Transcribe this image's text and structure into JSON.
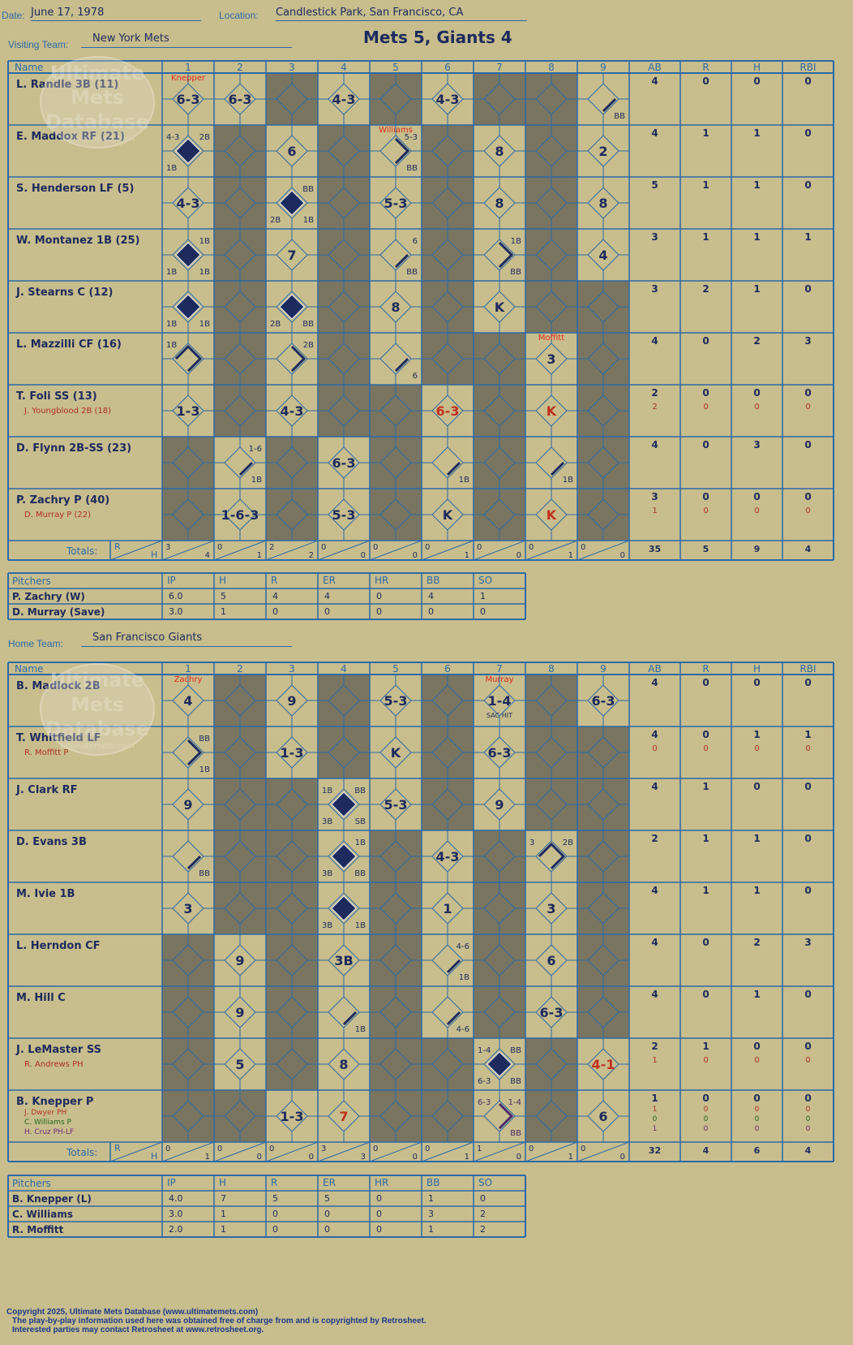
{
  "header": {
    "date_label": "Date:",
    "date": "June 17, 1978",
    "location_label": "Location:",
    "location": "Candlestick Park, San Francisco, CA",
    "title": "Mets 5, Giants 4"
  },
  "labels": {
    "visiting_team": "Visiting Team:",
    "home_team": "Home Team:",
    "name": "Name",
    "innings": [
      "1",
      "2",
      "3",
      "4",
      "5",
      "6",
      "7",
      "8",
      "9"
    ],
    "stats": [
      "AB",
      "R",
      "H",
      "RBI"
    ],
    "totals": "Totals:",
    "r": "R",
    "h": "H",
    "pitchers": "Pitchers",
    "pitch_cols": [
      "IP",
      "H",
      "R",
      "ER",
      "HR",
      "BB",
      "SO"
    ]
  },
  "watermark": [
    "Ultimate",
    "Mets",
    "Database",
    "ultimatemets.com"
  ],
  "visiting": {
    "team": "New York Mets",
    "players": [
      {
        "name": "L. Randle 3B (11)",
        "subs": [],
        "stats": [
          "4",
          "0",
          "0",
          "0"
        ],
        "subs_stats": []
      },
      {
        "name": "E. Maddox RF (21)",
        "subs": [],
        "stats": [
          "4",
          "1",
          "1",
          "0"
        ],
        "subs_stats": []
      },
      {
        "name": "S. Henderson LF (5)",
        "subs": [],
        "stats": [
          "5",
          "1",
          "1",
          "0"
        ],
        "subs_stats": []
      },
      {
        "name": "W. Montanez 1B (25)",
        "subs": [],
        "stats": [
          "3",
          "1",
          "1",
          "1"
        ],
        "subs_stats": []
      },
      {
        "name": "J. Stearns C (12)",
        "subs": [],
        "stats": [
          "3",
          "2",
          "1",
          "0"
        ],
        "subs_stats": []
      },
      {
        "name": "L. Mazzilli CF (16)",
        "subs": [],
        "stats": [
          "4",
          "0",
          "2",
          "3"
        ],
        "subs_stats": []
      },
      {
        "name": "T. Foli SS (13)",
        "subs": [
          {
            "name": "J. Youngblood 2B (18)",
            "color": "#b0301e"
          }
        ],
        "stats": [
          "2",
          "0",
          "0",
          "0"
        ],
        "subs_stats": [
          [
            "2",
            "0",
            "0",
            "0"
          ]
        ]
      },
      {
        "name": "D. Flynn 2B-SS (23)",
        "subs": [],
        "stats": [
          "4",
          "0",
          "3",
          "0"
        ],
        "subs_stats": []
      },
      {
        "name": "P. Zachry P (40)",
        "subs": [
          {
            "name": "D. Murray P (22)",
            "color": "#b0301e"
          }
        ],
        "stats": [
          "3",
          "0",
          "0",
          "0"
        ],
        "subs_stats": [
          [
            "1",
            "0",
            "0",
            "0"
          ]
        ]
      }
    ],
    "cells": [
      [
        {
          "t": "6-3",
          "top": "Knepper"
        },
        {
          "t": "6-3"
        },
        {
          "dark": true
        },
        {
          "t": "4-3"
        },
        {
          "dark": true
        },
        {
          "t": "4-3"
        },
        {
          "dark": true
        },
        {
          "dark": true
        },
        {
          "path": "1",
          "br": "BB"
        }
      ],
      [
        {
          "run": true,
          "tl": "4-3",
          "tr": "2B",
          "bl": "1B"
        },
        {
          "dark": true
        },
        {
          "t": "6"
        },
        {
          "dark": true
        },
        {
          "path": "2",
          "tr": "5-3",
          "br": "BB",
          "top": "Williams"
        },
        {
          "dark": true
        },
        {
          "t": "8"
        },
        {
          "dark": true
        },
        {
          "t": "2"
        }
      ],
      [
        {
          "t": "4-3"
        },
        {
          "dark": true
        },
        {
          "run": true,
          "tr": "BB",
          "bl": "2B",
          "br": "1B"
        },
        {
          "dark": true
        },
        {
          "t": "5-3"
        },
        {
          "dark": true
        },
        {
          "t": "8"
        },
        {
          "dark": true
        },
        {
          "t": "8"
        }
      ],
      [
        {
          "run": true,
          "tr": "1B",
          "bl": "1B",
          "br": "1B"
        },
        {
          "dark": true
        },
        {
          "t": "7"
        },
        {
          "dark": true
        },
        {
          "path": "1",
          "tr": "6",
          "br": "BB"
        },
        {
          "dark": true
        },
        {
          "path": "2",
          "tr": "1B",
          "br": "BB"
        },
        {
          "dark": true
        },
        {
          "t": "4"
        }
      ],
      [
        {
          "run": true,
          "bl": "1B",
          "br": "1B"
        },
        {
          "dark": true
        },
        {
          "run": true,
          "bl": "2B",
          "br": "BB"
        },
        {
          "dark": true
        },
        {
          "t": "8"
        },
        {
          "dark": true
        },
        {
          "t": "K",
          "rev": true
        },
        {
          "dark": true
        },
        {
          "dark": true
        }
      ],
      [
        {
          "path": "3",
          "tl": "1B"
        },
        {
          "dark": true
        },
        {
          "path": "2",
          "tr": "2B"
        },
        {
          "dark": true
        },
        {
          "path": "1",
          "br": "6"
        },
        {
          "dark": true
        },
        {
          "dark": true
        },
        {
          "t": "3",
          "top": "Moffitt"
        },
        {
          "dark": true
        }
      ],
      [
        {
          "t": "1-3"
        },
        {
          "dark": true
        },
        {
          "t": "4-3"
        },
        {
          "dark": true
        },
        {
          "dark": true
        },
        {
          "t": "6-3",
          "red": true
        },
        {
          "dark": true
        },
        {
          "t": "K",
          "red": true
        },
        {
          "dark": true
        }
      ],
      [
        {
          "dark": true
        },
        {
          "path": "1",
          "tr": "1-6",
          "br": "1B"
        },
        {
          "dark": true
        },
        {
          "t": "6-3"
        },
        {
          "dark": true
        },
        {
          "path": "1",
          "br": "1B"
        },
        {
          "dark": true
        },
        {
          "path": "1",
          "br": "1B"
        },
        {
          "dark": true
        }
      ],
      [
        {
          "dark": true
        },
        {
          "t": "1-6-3"
        },
        {
          "dark": true
        },
        {
          "t": "5-3"
        },
        {
          "dark": true
        },
        {
          "t": "K"
        },
        {
          "dark": true
        },
        {
          "t": "K",
          "red": true
        },
        {
          "dark": true
        }
      ]
    ],
    "totals": [
      [
        "3",
        "4"
      ],
      [
        "0",
        "1"
      ],
      [
        "2",
        "2"
      ],
      [
        "0",
        "0"
      ],
      [
        "0",
        "0"
      ],
      [
        "0",
        "1"
      ],
      [
        "0",
        "0"
      ],
      [
        "0",
        "1"
      ],
      [
        "0",
        "0"
      ]
    ],
    "totals_stats": [
      "35",
      "5",
      "9",
      "4"
    ],
    "pitchers": [
      {
        "name": "P. Zachry (W)",
        "stats": [
          "6.0",
          "5",
          "4",
          "4",
          "0",
          "4",
          "1"
        ]
      },
      {
        "name": "D. Murray (Save)",
        "stats": [
          "3.0",
          "1",
          "0",
          "0",
          "0",
          "0",
          "0"
        ]
      }
    ]
  },
  "home": {
    "team": "San Francisco Giants",
    "players": [
      {
        "name": "B. Madlock 2B",
        "subs": [],
        "stats": [
          "4",
          "0",
          "0",
          "0"
        ],
        "subs_stats": []
      },
      {
        "name": "T. Whitfield LF",
        "subs": [
          {
            "name": "R. Moffitt P",
            "color": "#b0301e"
          }
        ],
        "stats": [
          "4",
          "0",
          "1",
          "1"
        ],
        "subs_stats": [
          [
            "0",
            "0",
            "0",
            "0"
          ]
        ]
      },
      {
        "name": "J. Clark RF",
        "subs": [],
        "stats": [
          "4",
          "1",
          "0",
          "0"
        ],
        "subs_stats": []
      },
      {
        "name": "D. Evans 3B",
        "subs": [],
        "stats": [
          "2",
          "1",
          "1",
          "0"
        ],
        "subs_stats": []
      },
      {
        "name": "M. Ivie 1B",
        "subs": [],
        "stats": [
          "4",
          "1",
          "1",
          "0"
        ],
        "subs_stats": []
      },
      {
        "name": "L. Herndon CF",
        "subs": [],
        "stats": [
          "4",
          "0",
          "2",
          "3"
        ],
        "subs_stats": []
      },
      {
        "name": "M. Hill C",
        "subs": [],
        "stats": [
          "4",
          "0",
          "1",
          "0"
        ],
        "subs_stats": []
      },
      {
        "name": "J. LeMaster SS",
        "subs": [
          {
            "name": "R. Andrews PH",
            "color": "#b0301e"
          }
        ],
        "stats": [
          "2",
          "1",
          "0",
          "0"
        ],
        "subs_stats": [
          [
            "1",
            "0",
            "0",
            "0"
          ]
        ]
      },
      {
        "name": "B. Knepper P",
        "subs": [
          {
            "name": "J. Dwyer PH",
            "color": "#b0301e"
          },
          {
            "name": "C. Williams P",
            "color": "#1e6a1e"
          },
          {
            "name": "H. Cruz PH-LF",
            "color": "#6a2a7a"
          }
        ],
        "stats": [
          "1",
          "0",
          "0",
          "0"
        ],
        "subs_stats": [
          [
            "1",
            "0",
            "0",
            "0"
          ],
          [
            "0",
            "0",
            "0",
            "0"
          ],
          [
            "1",
            "0",
            "0",
            "0"
          ]
        ]
      }
    ],
    "cells": [
      [
        {
          "t": "4",
          "top": "Zachry"
        },
        {
          "dark": true
        },
        {
          "t": "9"
        },
        {
          "dark": true
        },
        {
          "t": "5-3"
        },
        {
          "dark": true
        },
        {
          "t": "1-4",
          "top": "Murray",
          "sub": "SAC HIT"
        },
        {
          "dark": true
        },
        {
          "t": "6-3"
        }
      ],
      [
        {
          "path": "2",
          "tr": "BB",
          "br": "1B"
        },
        {
          "dark": true
        },
        {
          "t": "1-3"
        },
        {
          "dark": true
        },
        {
          "t": "K"
        },
        {
          "dark": true
        },
        {
          "t": "6-3"
        },
        {
          "dark": true
        },
        {
          "dark": true
        }
      ],
      [
        {
          "t": "9"
        },
        {
          "dark": true
        },
        {
          "dark": true
        },
        {
          "run": true,
          "tl": "1B",
          "tr": "BB",
          "bl": "3B",
          "br": "SB"
        },
        {
          "t": "5-3"
        },
        {
          "dark": true
        },
        {
          "t": "9"
        },
        {
          "dark": true
        },
        {
          "dark": true
        }
      ],
      [
        {
          "path": "1",
          "br": "BB"
        },
        {
          "dark": true
        },
        {
          "dark": true
        },
        {
          "run": true,
          "tr": "1B",
          "bl": "3B",
          "br": "BB"
        },
        {
          "dark": true
        },
        {
          "t": "4-3"
        },
        {
          "dark": true
        },
        {
          "path": "3",
          "tl": "3",
          "tr": "2B"
        },
        {
          "dark": true
        }
      ],
      [
        {
          "t": "3"
        },
        {
          "dark": true
        },
        {
          "dark": true
        },
        {
          "run": true,
          "bl": "3B",
          "br": "1B"
        },
        {
          "dark": true
        },
        {
          "t": "1"
        },
        {
          "dark": true
        },
        {
          "t": "3"
        },
        {
          "dark": true
        }
      ],
      [
        {
          "dark": true
        },
        {
          "t": "9"
        },
        {
          "dark": true
        },
        {
          "t": "3B"
        },
        {
          "dark": true
        },
        {
          "path": "1",
          "tr": "4-6",
          "br": "1B"
        },
        {
          "dark": true
        },
        {
          "t": "6"
        },
        {
          "dark": true
        }
      ],
      [
        {
          "dark": true
        },
        {
          "t": "9"
        },
        {
          "dark": true
        },
        {
          "path": "1",
          "br": "1B"
        },
        {
          "dark": true
        },
        {
          "path": "1",
          "br": "4-6"
        },
        {
          "dark": true
        },
        {
          "t": "6-3"
        },
        {
          "dark": true
        }
      ],
      [
        {
          "dark": true
        },
        {
          "t": "5"
        },
        {
          "dark": true
        },
        {
          "t": "8"
        },
        {
          "dark": true
        },
        {
          "dark": true
        },
        {
          "run": true,
          "tl": "1-4",
          "tr": "BB",
          "bl": "6-3",
          "br": "BB"
        },
        {
          "dark": true
        },
        {
          "t": "4-1",
          "red": true
        }
      ],
      [
        {
          "dark": true
        },
        {
          "dark": true
        },
        {
          "t": "1-3"
        },
        {
          "t": "7",
          "red": true
        },
        {
          "dark": true
        },
        {
          "dark": true
        },
        {
          "path": "2",
          "purple": true,
          "tl": "6-3",
          "tr": "1-4",
          "br": "BB"
        },
        {
          "dark": true
        },
        {
          "t": "6"
        }
      ]
    ],
    "totals": [
      [
        "0",
        "1"
      ],
      [
        "0",
        "0"
      ],
      [
        "0",
        "0"
      ],
      [
        "3",
        "3"
      ],
      [
        "0",
        "0"
      ],
      [
        "0",
        "1"
      ],
      [
        "1",
        "0"
      ],
      [
        "0",
        "1"
      ],
      [
        "0",
        "0"
      ]
    ],
    "totals_stats": [
      "32",
      "4",
      "6",
      "4"
    ],
    "pitchers": [
      {
        "name": "B. Knepper (L)",
        "stats": [
          "4.0",
          "7",
          "5",
          "5",
          "0",
          "1",
          "0"
        ]
      },
      {
        "name": "C. Williams",
        "stats": [
          "3.0",
          "1",
          "0",
          "0",
          "0",
          "3",
          "2"
        ]
      },
      {
        "name": "R. Moffitt",
        "stats": [
          "2.0",
          "1",
          "0",
          "0",
          "0",
          "1",
          "2"
        ]
      }
    ]
  },
  "footer": {
    "copyright": "Copyright 2025, Ultimate Mets Database (www.ultimatemets.com)",
    "line2": "The play-by-play information used here was obtained free of charge from and is copyrighted by Retrosheet.",
    "line3": "Interested parties may contact Retrosheet at www.retrosheet.org."
  },
  "colors": {
    "background": "#c8bd8c",
    "grid": "#2a6aa8",
    "dark_cell": "#7a7560",
    "ink": "#1c2a5e",
    "red": "#c0301e",
    "purple": "#4a2a6a"
  }
}
